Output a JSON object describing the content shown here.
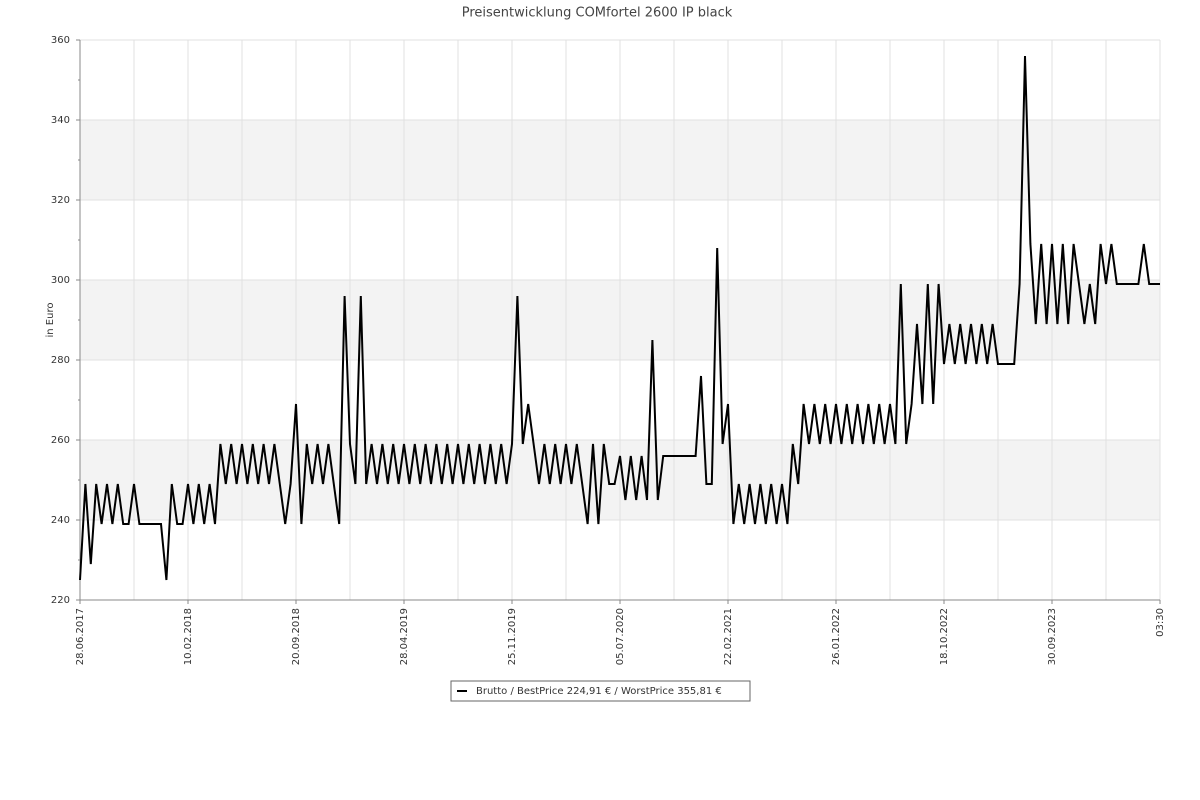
{
  "chart_data": {
    "type": "line",
    "title": "Preisentwicklung COMfortel 2600 IP black",
    "y_label": "in Euro",
    "categories": [
      "28.06.2017",
      null,
      null,
      null,
      null,
      null,
      null,
      null,
      null,
      null,
      null,
      null,
      null,
      null,
      null,
      null,
      null,
      null,
      null,
      null,
      "10.02.2018",
      null,
      null,
      null,
      null,
      null,
      null,
      null,
      null,
      null,
      null,
      null,
      null,
      null,
      null,
      null,
      null,
      null,
      null,
      null,
      "20.09.2018",
      null,
      null,
      null,
      null,
      null,
      null,
      null,
      null,
      null,
      null,
      null,
      null,
      null,
      null,
      null,
      null,
      null,
      null,
      null,
      "28.04.2019",
      null,
      null,
      null,
      null,
      null,
      null,
      null,
      null,
      null,
      null,
      null,
      null,
      null,
      null,
      null,
      null,
      null,
      null,
      null,
      "25.11.2019",
      null,
      null,
      null,
      null,
      null,
      null,
      null,
      null,
      null,
      null,
      null,
      null,
      null,
      null,
      null,
      null,
      null,
      null,
      null,
      "05.07.2020",
      null,
      null,
      null,
      null,
      null,
      null,
      null,
      null,
      null,
      null,
      null,
      null,
      null,
      null,
      null,
      null,
      null,
      null,
      null,
      "22.02.2021",
      null,
      null,
      null,
      null,
      null,
      null,
      null,
      null,
      null,
      null,
      null,
      null,
      null,
      null,
      null,
      null,
      null,
      null,
      null,
      "26.01.2022",
      null,
      null,
      null,
      null,
      null,
      null,
      null,
      null,
      null,
      null,
      null,
      null,
      null,
      null,
      null,
      null,
      null,
      null,
      null,
      "18.10.2022",
      null,
      null,
      null,
      null,
      null,
      null,
      null,
      null,
      null,
      null,
      null,
      null,
      null,
      null,
      null,
      null,
      null,
      null,
      null,
      "30.09.2023",
      null,
      null,
      null,
      null,
      null,
      null,
      null,
      null,
      null,
      null,
      null,
      null,
      null,
      null,
      null,
      null,
      null,
      null,
      null,
      "03:30"
    ],
    "series": [
      {
        "name": "Brutto / BestPrice  224,91 € / WorstPrice  355,81 €",
        "color": "#000000",
        "values": [
          225,
          249,
          229,
          249,
          239,
          249,
          239,
          249,
          239,
          239,
          249,
          239,
          239,
          239,
          239,
          239,
          225,
          249,
          239,
          239,
          249,
          239,
          249,
          239,
          249,
          239,
          259,
          249,
          259,
          249,
          259,
          249,
          259,
          249,
          259,
          249,
          259,
          249,
          239,
          249,
          269,
          239,
          259,
          249,
          259,
          249,
          259,
          249,
          239,
          296,
          259,
          249,
          296,
          249,
          259,
          249,
          259,
          249,
          259,
          249,
          259,
          249,
          259,
          249,
          259,
          249,
          259,
          249,
          259,
          249,
          259,
          249,
          259,
          249,
          259,
          249,
          259,
          249,
          259,
          249,
          259,
          296,
          259,
          269,
          259,
          249,
          259,
          249,
          259,
          249,
          259,
          249,
          259,
          249,
          239,
          259,
          239,
          259,
          249,
          249,
          256,
          245,
          256,
          245,
          256,
          245,
          285,
          245,
          256,
          256,
          256,
          256,
          256,
          256,
          256,
          276,
          249,
          249,
          308,
          259,
          269,
          239,
          249,
          239,
          249,
          239,
          249,
          239,
          249,
          239,
          249,
          239,
          259,
          249,
          269,
          259,
          269,
          259,
          269,
          259,
          269,
          259,
          269,
          259,
          269,
          259,
          269,
          259,
          269,
          259,
          269,
          259,
          299,
          259,
          269,
          289,
          269,
          299,
          269,
          299,
          279,
          289,
          279,
          289,
          279,
          289,
          279,
          289,
          279,
          289,
          279,
          279,
          279,
          279,
          299,
          356,
          309,
          289,
          309,
          289,
          309,
          289,
          309,
          289,
          309,
          299,
          289,
          299,
          289,
          309,
          299,
          309,
          299,
          299,
          299,
          299,
          299,
          309,
          299,
          299,
          299
        ]
      }
    ],
    "ylim": [
      220,
      360
    ],
    "yticks": [
      220,
      240,
      260,
      280,
      300,
      320,
      340,
      360
    ],
    "grid": true
  }
}
